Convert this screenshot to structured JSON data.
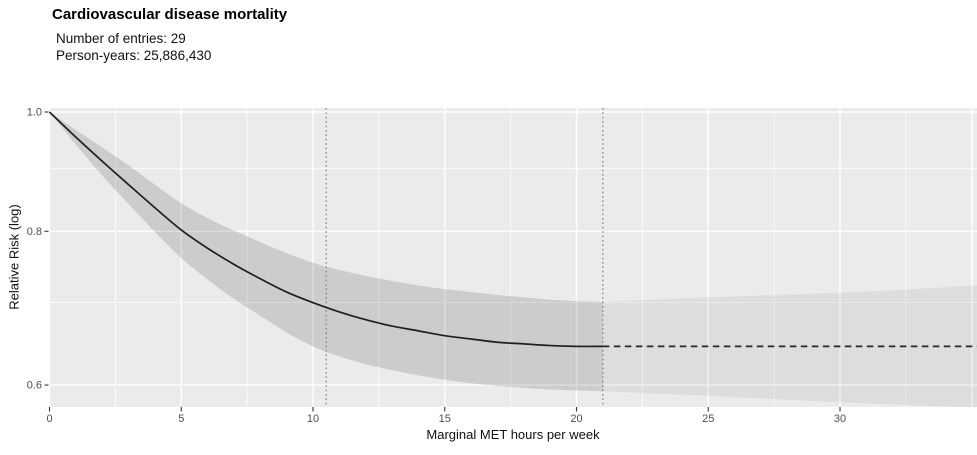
{
  "header": {
    "title": "Cardiovascular disease mortality",
    "subtitle_line1": "Number of entries: 29",
    "subtitle_line2": "Person-years: 25,886,430"
  },
  "chart_data": {
    "type": "line",
    "title": "Cardiovascular disease mortality",
    "xlabel": "Marginal MET hours per week",
    "ylabel": "Relative Risk (log)",
    "y_scale": "log",
    "xlim": [
      -0.02,
      35.2
    ],
    "ylim": [
      0.576,
      1.008
    ],
    "x_ticks": [
      0,
      5,
      10,
      15,
      20,
      25,
      30
    ],
    "x_tick_labels": [
      "0",
      "5",
      "10",
      "15",
      "20",
      "25",
      "30"
    ],
    "y_ticks": [
      1.0,
      0.8,
      0.6
    ],
    "y_tick_labels": [
      "1.0",
      "0.8",
      "0.6"
    ],
    "x_grid_major": [
      0,
      5,
      10,
      15,
      20,
      25,
      30,
      35
    ],
    "x_grid_minor": [
      2.5,
      7.5,
      12.5,
      17.5,
      22.5,
      27.5,
      32.5
    ],
    "y_grid_minor": [
      0.9,
      0.7
    ],
    "grid": "on",
    "legend": "none",
    "reference_lines_x": [
      10.5,
      21
    ],
    "series": [
      {
        "name": "fitted-curve",
        "style": "solid",
        "x": [
          0,
          1,
          2,
          3,
          4,
          5,
          6,
          7,
          8,
          9,
          10,
          11,
          12,
          13,
          14,
          15,
          16,
          17,
          18,
          19,
          20,
          21
        ],
        "rr": [
          1.0,
          0.954,
          0.912,
          0.873,
          0.836,
          0.802,
          0.775,
          0.752,
          0.732,
          0.714,
          0.7,
          0.688,
          0.678,
          0.67,
          0.664,
          0.658,
          0.654,
          0.65,
          0.648,
          0.646,
          0.645,
          0.645
        ]
      },
      {
        "name": "extrapolated-curve",
        "style": "dashed",
        "x": [
          21,
          35.3
        ],
        "rr": [
          0.645,
          0.645
        ]
      }
    ],
    "bands": [
      {
        "name": "confidence-band",
        "x": [
          0,
          1,
          2,
          3,
          4,
          5,
          6,
          7,
          8,
          9,
          10,
          11,
          12,
          13,
          14,
          15,
          16,
          17,
          18,
          19,
          20,
          21
        ],
        "upper": [
          1.0,
          0.967,
          0.936,
          0.905,
          0.873,
          0.843,
          0.82,
          0.801,
          0.784,
          0.768,
          0.754,
          0.744,
          0.736,
          0.729,
          0.723,
          0.718,
          0.714,
          0.71,
          0.707,
          0.704,
          0.702,
          0.701
        ],
        "lower": [
          1.0,
          0.941,
          0.888,
          0.842,
          0.799,
          0.761,
          0.731,
          0.705,
          0.683,
          0.662,
          0.645,
          0.633,
          0.624,
          0.617,
          0.611,
          0.606,
          0.602,
          0.599,
          0.597,
          0.595,
          0.594,
          0.593
        ]
      },
      {
        "name": "extrapolated-band",
        "x": [
          21,
          25,
          30,
          35.3
        ],
        "upper": [
          0.701,
          0.707,
          0.713,
          0.723
        ],
        "lower": [
          0.593,
          0.588,
          0.581,
          0.575
        ]
      }
    ],
    "colors": {
      "panel_background": "#ebebeb",
      "gridline": "#ffffff",
      "confidence_band": "rgba(40,40,40,0.155)",
      "extrapolated_band": "rgba(40,40,40,0.072)",
      "curve": "#1f1f1f",
      "dashed_line": "#262626",
      "reference_line": "#7f7f7f",
      "tick_mark": "#333333",
      "tick_label": "#4d4d4d"
    }
  }
}
